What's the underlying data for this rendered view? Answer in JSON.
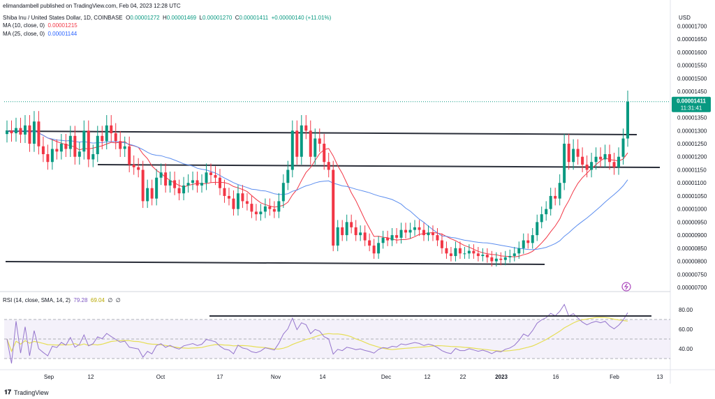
{
  "publisher": "elimandambell published on TradingView.com, Feb 04, 2023 12:28 UTC",
  "symbol_line": {
    "name": "Shiba Inu / United States Dollar, 1D, COINBASE",
    "o_label": "O",
    "o": "0.00001272",
    "h_label": "H",
    "h": "0.00001469",
    "l_label": "L",
    "l": "0.00001270",
    "c_label": "C",
    "c": "0.00001411",
    "change": "+0.00000140 (+11.01%)"
  },
  "ma10": {
    "label": "MA (10, close, 0)",
    "value": "0.00001215",
    "color": "#f23645"
  },
  "ma25": {
    "label": "MA (25, close, 0)",
    "value": "0.00001144",
    "color": "#2962ff"
  },
  "rsi": {
    "label": "RSI (14, close, SMA, 14, 2)",
    "value": "79.28",
    "sma": "69.04",
    "extra1": "∅",
    "extra2": "∅"
  },
  "currency": "USD",
  "last_price": {
    "value": "0.00001411",
    "countdown": "11:31:41"
  },
  "footer_logo": "TradingView",
  "colors": {
    "up": "#089981",
    "down": "#f23645",
    "ma10": "#f23645",
    "ma25": "#5b8def",
    "rsi": "#9575cd",
    "rsi_ma": "#e6de56"
  },
  "chart_data": {
    "type": "candlestick",
    "price_axis_labels": [
      "0.00001700",
      "0.00001650",
      "0.00001600",
      "0.00001550",
      "0.00001500",
      "0.00001450",
      "0.00001400",
      "0.00001350",
      "0.00001300",
      "0.00001250",
      "0.00001200",
      "0.00001150",
      "0.00001100",
      "0.00001050",
      "0.00001000",
      "0.00000950",
      "0.00000900",
      "0.00000850",
      "0.00000800",
      "0.00000750",
      "0.00000700"
    ],
    "price_range": [
      7e-06,
      1.72e-05
    ],
    "rsi_axis_labels": [
      "80.00",
      "60.00",
      "40.00"
    ],
    "rsi_levels": [
      70,
      50,
      30
    ],
    "x_labels": [
      "Sep",
      "12",
      "Oct",
      "17",
      "Nov",
      "14",
      "Dec",
      "12",
      "22",
      "2023",
      "16",
      "Feb",
      "13"
    ],
    "closes": [
      1.3e-05,
      1.29e-05,
      1.31e-05,
      1.285e-05,
      1.32e-05,
      1.25e-05,
      1.335e-05,
      1.24e-05,
      1.21e-05,
      1.18e-05,
      1.23e-05,
      1.22e-05,
      1.25e-05,
      1.23e-05,
      1.28e-05,
      1.2e-05,
      1.22e-05,
      1.3e-05,
      1.19e-05,
      1.21e-05,
      1.28e-05,
      1.26e-05,
      1.32e-05,
      1.29e-05,
      1.26e-05,
      1.23e-05,
      1.24e-05,
      1.17e-05,
      1.16e-05,
      1.15e-05,
      1.03e-05,
      1.08e-05,
      1.04e-05,
      1.12e-05,
      1.14e-05,
      1.09e-05,
      1.11e-05,
      1.08e-05,
      1.06e-05,
      1.09e-05,
      1.1e-05,
      1.11e-05,
      1.09e-05,
      1.1e-05,
      1.14e-05,
      1.13e-05,
      1.12e-05,
      1.08e-05,
      1.05e-05,
      1.04e-05,
      1e-05,
      1.06e-05,
      1.03e-05,
      1.02e-05,
      9.9e-06,
      9.8e-06,
      9.9e-06,
      1.01e-05,
      1e-05,
      9.9e-06,
      1.03e-05,
      1.1e-05,
      1.15e-05,
      1.3e-05,
      1.2e-05,
      1.32e-05,
      1.3e-05,
      1.2e-05,
      1.27e-05,
      1.25e-05,
      1.18e-05,
      1.15e-05,
      8.6e-06,
      9.3e-06,
      9e-06,
      9.5e-06,
      9.3e-06,
      9e-06,
      9.1e-06,
      8.8e-06,
      8.6e-06,
      8.3e-06,
      8.7e-06,
      8.9e-06,
      8.8e-06,
      9e-06,
      8.9e-06,
      9.2e-06,
      9.1e-06,
      9.2e-06,
      9.3e-06,
      9.2e-06,
      9e-06,
      9.1e-06,
      9e-06,
      8.8e-06,
      8.5e-06,
      8.3e-06,
      8.2e-06,
      8.5e-06,
      8.3e-06,
      8.3e-06,
      8.4e-06,
      8.3e-06,
      8.2e-06,
      8.25e-06,
      8.15e-06,
      8e-06,
      8.1e-06,
      8.05e-06,
      8.15e-06,
      8.2e-06,
      8.3e-06,
      8.5e-06,
      8.8e-06,
      8.7e-06,
      9e-06,
      9.5e-06,
      9.8e-06,
      1e-05,
      1.05e-05,
      1.04e-05,
      1.1e-05,
      1.25e-05,
      1.18e-05,
      1.23e-05,
      1.2e-05,
      1.17e-05,
      1.15e-05,
      1.18e-05,
      1.2e-05,
      1.19e-05,
      1.21e-05,
      1.18e-05,
      1.16e-05,
      1.2e-05,
      1.27e-05,
      1.411e-05
    ],
    "ma10_label_color": "red",
    "ma25_label_color": "blue"
  }
}
